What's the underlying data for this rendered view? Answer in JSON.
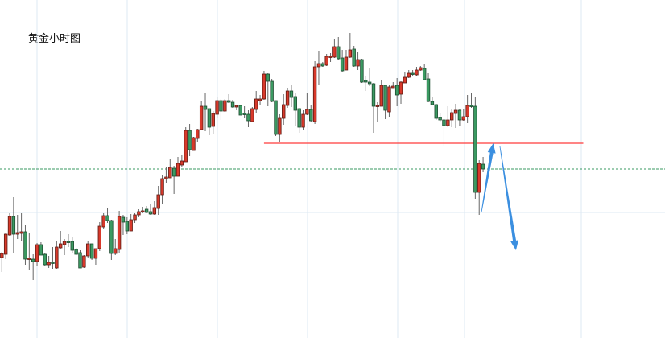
{
  "chart_data": {
    "type": "candlestick",
    "title": "黄金小时图",
    "xlabel": "",
    "ylabel": "",
    "grid": true,
    "colors": {
      "up": "#d8392b",
      "up_border": "#5c1a12",
      "down": "#3b9a62",
      "down_border": "#1d4a2f",
      "wick": "#666666",
      "support": "#ff3b3b",
      "current": "#3a9a62",
      "arrow": "#3b8fe0",
      "grid": "#dde9f3"
    },
    "ylim": [
      60,
      370
    ],
    "candles_ohlc": [
      [
        80,
        87,
        62,
        85
      ],
      [
        84,
        110,
        78,
        109
      ],
      [
        108,
        135,
        107,
        131
      ],
      [
        131,
        155,
        85,
        109
      ],
      [
        109,
        133,
        103,
        111
      ],
      [
        110,
        135,
        100,
        112
      ],
      [
        112,
        121,
        71,
        78
      ],
      [
        78,
        110,
        65,
        79
      ],
      [
        78,
        84,
        52,
        75
      ],
      [
        75,
        98,
        70,
        96
      ],
      [
        96,
        99,
        83,
        83
      ],
      [
        84,
        85,
        70,
        71
      ],
      [
        71,
        82,
        67,
        74
      ],
      [
        74,
        93,
        66,
        73
      ],
      [
        67,
        100,
        66,
        93
      ],
      [
        92,
        113,
        90,
        97
      ],
      [
        96,
        103,
        83,
        100
      ],
      [
        100,
        109,
        93,
        99
      ],
      [
        100,
        105,
        86,
        89
      ],
      [
        90,
        92,
        83,
        84
      ],
      [
        86,
        89,
        67,
        67
      ],
      [
        68,
        83,
        67,
        82
      ],
      [
        82,
        101,
        80,
        97
      ],
      [
        97,
        97,
        77,
        79
      ],
      [
        79,
        91,
        71,
        91
      ],
      [
        91,
        124,
        88,
        119
      ],
      [
        118,
        135,
        115,
        132
      ],
      [
        132,
        141,
        123,
        126
      ],
      [
        126,
        127,
        77,
        85
      ],
      [
        85,
        103,
        83,
        91
      ],
      [
        90,
        138,
        86,
        131
      ],
      [
        130,
        133,
        108,
        124
      ],
      [
        125,
        130,
        109,
        113
      ],
      [
        113,
        134,
        113,
        127
      ],
      [
        127,
        135,
        123,
        133
      ],
      [
        133,
        140,
        130,
        137
      ],
      [
        137,
        143,
        135,
        138
      ],
      [
        140,
        144,
        135,
        136
      ],
      [
        137,
        147,
        133,
        134
      ],
      [
        134,
        150,
        133,
        142
      ],
      [
        141,
        169,
        133,
        158
      ],
      [
        158,
        183,
        147,
        178
      ],
      [
        178,
        193,
        173,
        180
      ],
      [
        179,
        203,
        179,
        192
      ],
      [
        191,
        194,
        159,
        181
      ],
      [
        181,
        205,
        181,
        197
      ],
      [
        195,
        208,
        192,
        200
      ],
      [
        199,
        242,
        199,
        238
      ],
      [
        238,
        246,
        206,
        214
      ],
      [
        213,
        230,
        213,
        229
      ],
      [
        228,
        240,
        223,
        239
      ],
      [
        239,
        275,
        239,
        268
      ],
      [
        268,
        284,
        237,
        264
      ],
      [
        265,
        265,
        232,
        242
      ],
      [
        243,
        262,
        233,
        259
      ],
      [
        258,
        279,
        253,
        275
      ],
      [
        275,
        277,
        251,
        262
      ],
      [
        262,
        277,
        261,
        275
      ],
      [
        275,
        283,
        272,
        273
      ],
      [
        273,
        276,
        266,
        267
      ],
      [
        267,
        270,
        263,
        269
      ],
      [
        269,
        270,
        257,
        257
      ],
      [
        259,
        268,
        253,
        258
      ],
      [
        258,
        263,
        242,
        250
      ],
      [
        249,
        267,
        248,
        265
      ],
      [
        264,
        287,
        260,
        277
      ],
      [
        275,
        282,
        269,
        277
      ],
      [
        277,
        312,
        276,
        308
      ],
      [
        308,
        309,
        268,
        299
      ],
      [
        299,
        302,
        273,
        274
      ],
      [
        275,
        275,
        231,
        233
      ],
      [
        233,
        258,
        223,
        253
      ],
      [
        253,
        283,
        245,
        270
      ],
      [
        269,
        291,
        266,
        287
      ],
      [
        287,
        295,
        267,
        279
      ],
      [
        280,
        285,
        243,
        263
      ],
      [
        265,
        266,
        235,
        242
      ],
      [
        242,
        263,
        239,
        258
      ],
      [
        258,
        285,
        257,
        264
      ],
      [
        264,
        269,
        249,
        250
      ],
      [
        249,
        324,
        246,
        317
      ],
      [
        317,
        337,
        294,
        321
      ],
      [
        321,
        323,
        317,
        318
      ],
      [
        319,
        333,
        318,
        330
      ],
      [
        329,
        334,
        323,
        330
      ],
      [
        329,
        351,
        328,
        342
      ],
      [
        342,
        354,
        326,
        327
      ],
      [
        328,
        338,
        311,
        312
      ],
      [
        313,
        338,
        313,
        329
      ],
      [
        329,
        359,
        328,
        338
      ],
      [
        339,
        343,
        317,
        318
      ],
      [
        318,
        336,
        313,
        326
      ],
      [
        326,
        327,
        297,
        298
      ],
      [
        300,
        305,
        287,
        298
      ],
      [
        298,
        316,
        293,
        296
      ],
      [
        296,
        297,
        235,
        268
      ],
      [
        268,
        273,
        249,
        269
      ],
      [
        268,
        300,
        268,
        294
      ],
      [
        294,
        295,
        252,
        263
      ],
      [
        261,
        294,
        254,
        292
      ],
      [
        291,
        298,
        291,
        293
      ],
      [
        294,
        303,
        268,
        282
      ],
      [
        283,
        299,
        271,
        298
      ],
      [
        297,
        311,
        297,
        304
      ],
      [
        304,
        313,
        303,
        309
      ],
      [
        309,
        313,
        306,
        308
      ],
      [
        307,
        317,
        305,
        313
      ],
      [
        313,
        318,
        312,
        316
      ],
      [
        315,
        320,
        300,
        301
      ],
      [
        302,
        309,
        273,
        274
      ],
      [
        274,
        279,
        269,
        270
      ],
      [
        270,
        271,
        251,
        253
      ],
      [
        254,
        260,
        249,
        251
      ],
      [
        251,
        252,
        219,
        244
      ],
      [
        244,
        268,
        242,
        251
      ],
      [
        251,
        265,
        242,
        260
      ],
      [
        259,
        271,
        241,
        263
      ],
      [
        263,
        265,
        243,
        251
      ],
      [
        251,
        265,
        250,
        255
      ],
      [
        255,
        282,
        247,
        269
      ],
      [
        269,
        284,
        266,
        268
      ],
      [
        268,
        279,
        153,
        161
      ],
      [
        161,
        201,
        133,
        197
      ],
      [
        196,
        205,
        186,
        190
      ]
    ],
    "support_level": {
      "value": 222,
      "from_index": 67,
      "to_index": 148.6
    },
    "current_price_line": 190,
    "arrows": [
      {
        "from": [
          122.6,
          137
        ],
        "to": [
          125.6,
          222
        ]
      },
      {
        "from": [
          127.3,
          218
        ],
        "to": [
          131.4,
          89
        ]
      }
    ]
  }
}
